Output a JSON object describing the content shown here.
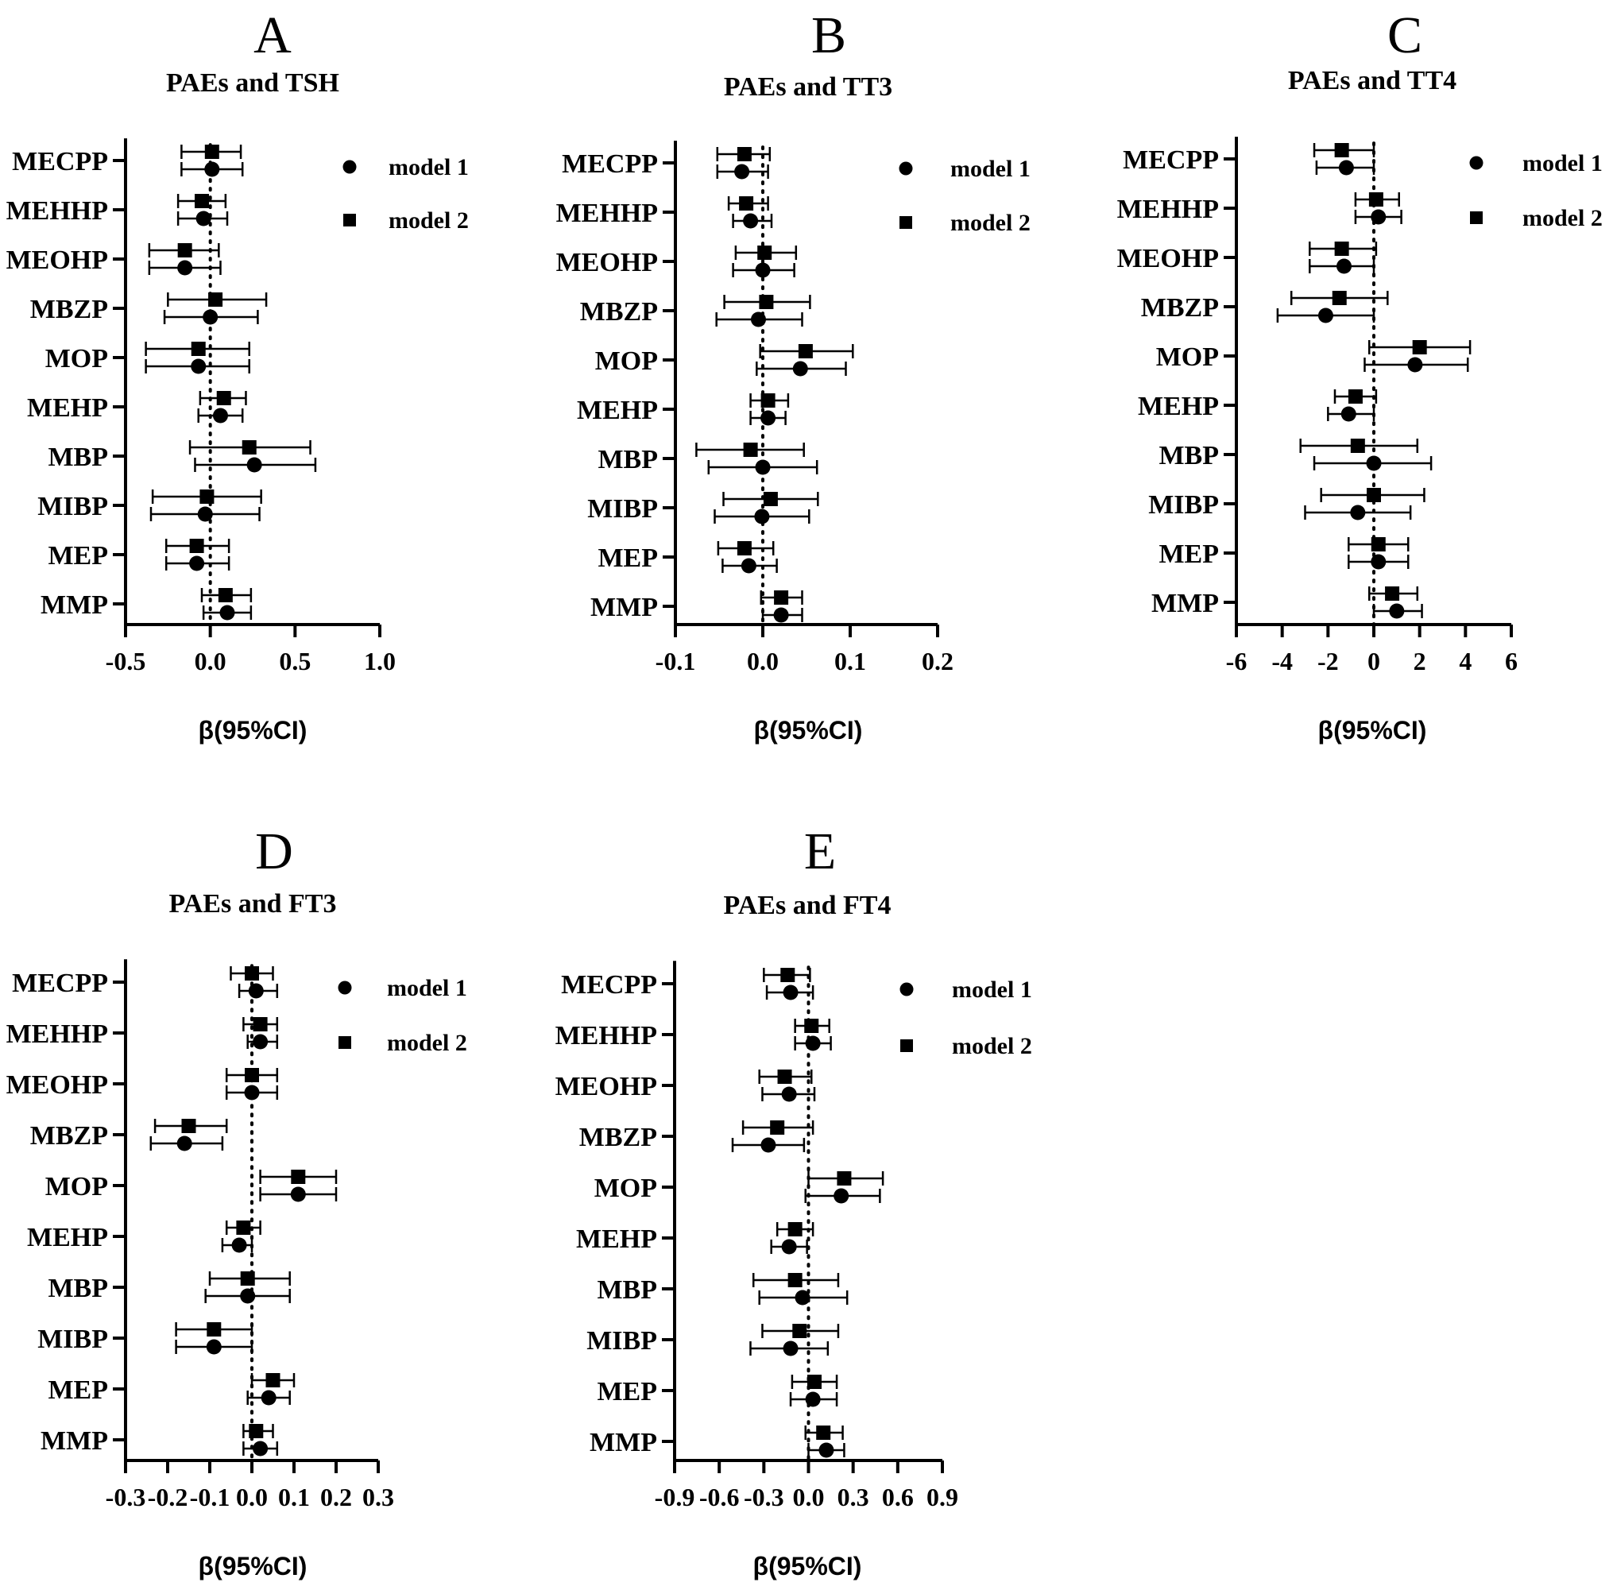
{
  "chart_data": [
    {
      "panel": "A",
      "type": "forest",
      "title": "PAEs and TSH",
      "xlabel": "β(95%CI)",
      "xlim": [
        -0.5,
        1.0
      ],
      "xticks": [
        -0.5,
        0.0,
        0.5,
        1.0
      ],
      "xtick_labels": [
        "-0.5",
        "0.0",
        "0.5",
        "1.0"
      ],
      "reference_line": 0,
      "categories": [
        "MECPP",
        "MEHHP",
        "MEOHP",
        "MBZP",
        "MOP",
        "MEHP",
        "MBP",
        "MIBP",
        "MEP",
        "MMP"
      ],
      "series": [
        {
          "name": "model 1",
          "marker": "circle",
          "values": [
            0.01,
            -0.04,
            -0.15,
            0.0,
            -0.07,
            0.06,
            0.26,
            -0.03,
            -0.08,
            0.1
          ],
          "lower": [
            -0.17,
            -0.19,
            -0.36,
            -0.27,
            -0.38,
            -0.07,
            -0.09,
            -0.35,
            -0.26,
            -0.04
          ],
          "upper": [
            0.19,
            0.1,
            0.06,
            0.28,
            0.23,
            0.19,
            0.62,
            0.29,
            0.11,
            0.24
          ]
        },
        {
          "name": "model 2",
          "marker": "square",
          "values": [
            0.01,
            -0.05,
            -0.15,
            0.03,
            -0.07,
            0.08,
            0.23,
            -0.02,
            -0.08,
            0.09
          ],
          "lower": [
            -0.17,
            -0.19,
            -0.36,
            -0.25,
            -0.38,
            -0.06,
            -0.12,
            -0.34,
            -0.26,
            -0.05
          ],
          "upper": [
            0.18,
            0.09,
            0.05,
            0.33,
            0.23,
            0.21,
            0.59,
            0.3,
            0.11,
            0.24
          ]
        }
      ]
    },
    {
      "panel": "B",
      "type": "forest",
      "title": "PAEs and TT3",
      "xlabel": "β(95%CI)",
      "xlim": [
        -0.1,
        0.2
      ],
      "xticks": [
        -0.1,
        0.0,
        0.1,
        0.2
      ],
      "xtick_labels": [
        "-0.1",
        "0.0",
        "0.1",
        "0.2"
      ],
      "reference_line": 0,
      "categories": [
        "MECPP",
        "MEHHP",
        "MEOHP",
        "MBZP",
        "MOP",
        "MEHP",
        "MBP",
        "MIBP",
        "MEP",
        "MMP"
      ],
      "series": [
        {
          "name": "model 1",
          "marker": "circle",
          "values": [
            -0.024,
            -0.014,
            0.0,
            -0.005,
            0.043,
            0.006,
            0.0,
            -0.001,
            -0.016,
            0.021
          ],
          "lower": [
            -0.052,
            -0.034,
            -0.034,
            -0.053,
            -0.007,
            -0.014,
            -0.062,
            -0.055,
            -0.046,
            0.0
          ],
          "upper": [
            0.006,
            0.01,
            0.036,
            0.045,
            0.095,
            0.026,
            0.062,
            0.053,
            0.016,
            0.045
          ]
        },
        {
          "name": "model 2",
          "marker": "square",
          "values": [
            -0.021,
            -0.019,
            0.002,
            0.004,
            0.049,
            0.006,
            -0.014,
            0.009,
            -0.021,
            0.021
          ],
          "lower": [
            -0.052,
            -0.039,
            -0.031,
            -0.044,
            -0.003,
            -0.014,
            -0.076,
            -0.045,
            -0.051,
            -0.002
          ],
          "upper": [
            0.008,
            0.006,
            0.038,
            0.054,
            0.103,
            0.029,
            0.047,
            0.063,
            0.012,
            0.045
          ]
        }
      ]
    },
    {
      "panel": "C",
      "type": "forest",
      "title": "PAEs and TT4",
      "xlabel": "β(95%CI)",
      "xlim": [
        -6,
        6
      ],
      "xticks": [
        -6,
        -4,
        -2,
        0,
        2,
        4,
        6
      ],
      "xtick_labels": [
        "-6",
        "-4",
        "-2",
        "0",
        "2",
        "4",
        "6"
      ],
      "reference_line": 0,
      "categories": [
        "MECPP",
        "MEHHP",
        "MEOHP",
        "MBZP",
        "MOP",
        "MEHP",
        "MBP",
        "MIBP",
        "MEP",
        "MMP"
      ],
      "series": [
        {
          "name": "model 1",
          "marker": "circle",
          "values": [
            -1.2,
            0.2,
            -1.3,
            -2.1,
            1.8,
            -1.1,
            0.0,
            -0.7,
            0.2,
            1.0
          ],
          "lower": [
            -2.5,
            -0.8,
            -2.8,
            -4.2,
            -0.4,
            -2.0,
            -2.6,
            -3.0,
            -1.1,
            0.0
          ],
          "upper": [
            0.0,
            1.2,
            0.0,
            0.0,
            4.1,
            0.0,
            2.5,
            1.6,
            1.5,
            2.1
          ]
        },
        {
          "name": "model 2",
          "marker": "square",
          "values": [
            -1.4,
            0.1,
            -1.4,
            -1.5,
            2.0,
            -0.8,
            -0.7,
            0.0,
            0.2,
            0.8
          ],
          "lower": [
            -2.6,
            -0.8,
            -2.8,
            -3.6,
            -0.2,
            -1.7,
            -3.2,
            -2.3,
            -1.1,
            -0.2
          ],
          "upper": [
            0.0,
            1.1,
            0.1,
            0.6,
            4.2,
            0.1,
            1.9,
            2.2,
            1.5,
            1.9
          ]
        }
      ]
    },
    {
      "panel": "D",
      "type": "forest",
      "title": "PAEs and FT3",
      "xlabel": "β(95%CI)",
      "xlim": [
        -0.3,
        0.3
      ],
      "xticks": [
        -0.3,
        -0.2,
        -0.1,
        0.0,
        0.1,
        0.2,
        0.3
      ],
      "xtick_labels": [
        "-0.3",
        "-0.2",
        "-0.1",
        "0.0",
        "0.1",
        "0.2",
        "0.3"
      ],
      "reference_line": 0,
      "categories": [
        "MECPP",
        "MEHHP",
        "MEOHP",
        "MBZP",
        "MOP",
        "MEHP",
        "MBP",
        "MIBP",
        "MEP",
        "MMP"
      ],
      "series": [
        {
          "name": "model 1",
          "marker": "circle",
          "values": [
            0.01,
            0.02,
            0.0,
            -0.16,
            0.11,
            -0.03,
            -0.01,
            -0.09,
            0.04,
            0.02
          ],
          "lower": [
            -0.03,
            -0.01,
            -0.06,
            -0.24,
            0.02,
            -0.07,
            -0.11,
            -0.18,
            -0.01,
            -0.02
          ],
          "upper": [
            0.06,
            0.06,
            0.06,
            -0.07,
            0.2,
            0.0,
            0.09,
            0.0,
            0.09,
            0.06
          ]
        },
        {
          "name": "model 2",
          "marker": "square",
          "values": [
            0.0,
            0.02,
            0.0,
            -0.15,
            0.11,
            -0.02,
            -0.01,
            -0.09,
            0.05,
            0.01
          ],
          "lower": [
            -0.05,
            -0.02,
            -0.06,
            -0.23,
            0.02,
            -0.06,
            -0.1,
            -0.18,
            0.0,
            -0.02
          ],
          "upper": [
            0.05,
            0.06,
            0.06,
            -0.06,
            0.2,
            0.02,
            0.09,
            0.0,
            0.1,
            0.05
          ]
        }
      ]
    },
    {
      "panel": "E",
      "type": "forest",
      "title": "PAEs and FT4",
      "xlabel": "β(95%CI)",
      "xlim": [
        -0.9,
        0.9
      ],
      "xticks": [
        -0.9,
        -0.6,
        -0.3,
        0.0,
        0.3,
        0.6,
        0.9
      ],
      "xtick_labels": [
        "-0.9",
        "-0.6",
        "-0.3",
        "0.0",
        "0.3",
        "0.6",
        "0.9"
      ],
      "reference_line": 0,
      "categories": [
        "MECPP",
        "MEHHP",
        "MEOHP",
        "MBZP",
        "MOP",
        "MEHP",
        "MBP",
        "MIBP",
        "MEP",
        "MMP"
      ],
      "series": [
        {
          "name": "model 1",
          "marker": "circle",
          "values": [
            -0.12,
            0.03,
            -0.13,
            -0.27,
            0.22,
            -0.13,
            -0.04,
            -0.12,
            0.03,
            0.12
          ],
          "lower": [
            -0.28,
            -0.09,
            -0.31,
            -0.51,
            -0.02,
            -0.25,
            -0.33,
            -0.39,
            -0.12,
            0.0
          ],
          "upper": [
            0.03,
            0.15,
            0.04,
            -0.03,
            0.48,
            -0.01,
            0.26,
            0.13,
            0.19,
            0.24
          ]
        },
        {
          "name": "model 2",
          "marker": "square",
          "values": [
            -0.14,
            0.02,
            -0.16,
            -0.21,
            0.24,
            -0.09,
            -0.09,
            -0.06,
            0.04,
            0.1
          ],
          "lower": [
            -0.3,
            -0.09,
            -0.33,
            -0.44,
            0.0,
            -0.21,
            -0.37,
            -0.31,
            -0.11,
            -0.02
          ],
          "upper": [
            0.01,
            0.14,
            0.02,
            0.03,
            0.5,
            0.03,
            0.2,
            0.2,
            0.19,
            0.23
          ]
        }
      ]
    }
  ]
}
